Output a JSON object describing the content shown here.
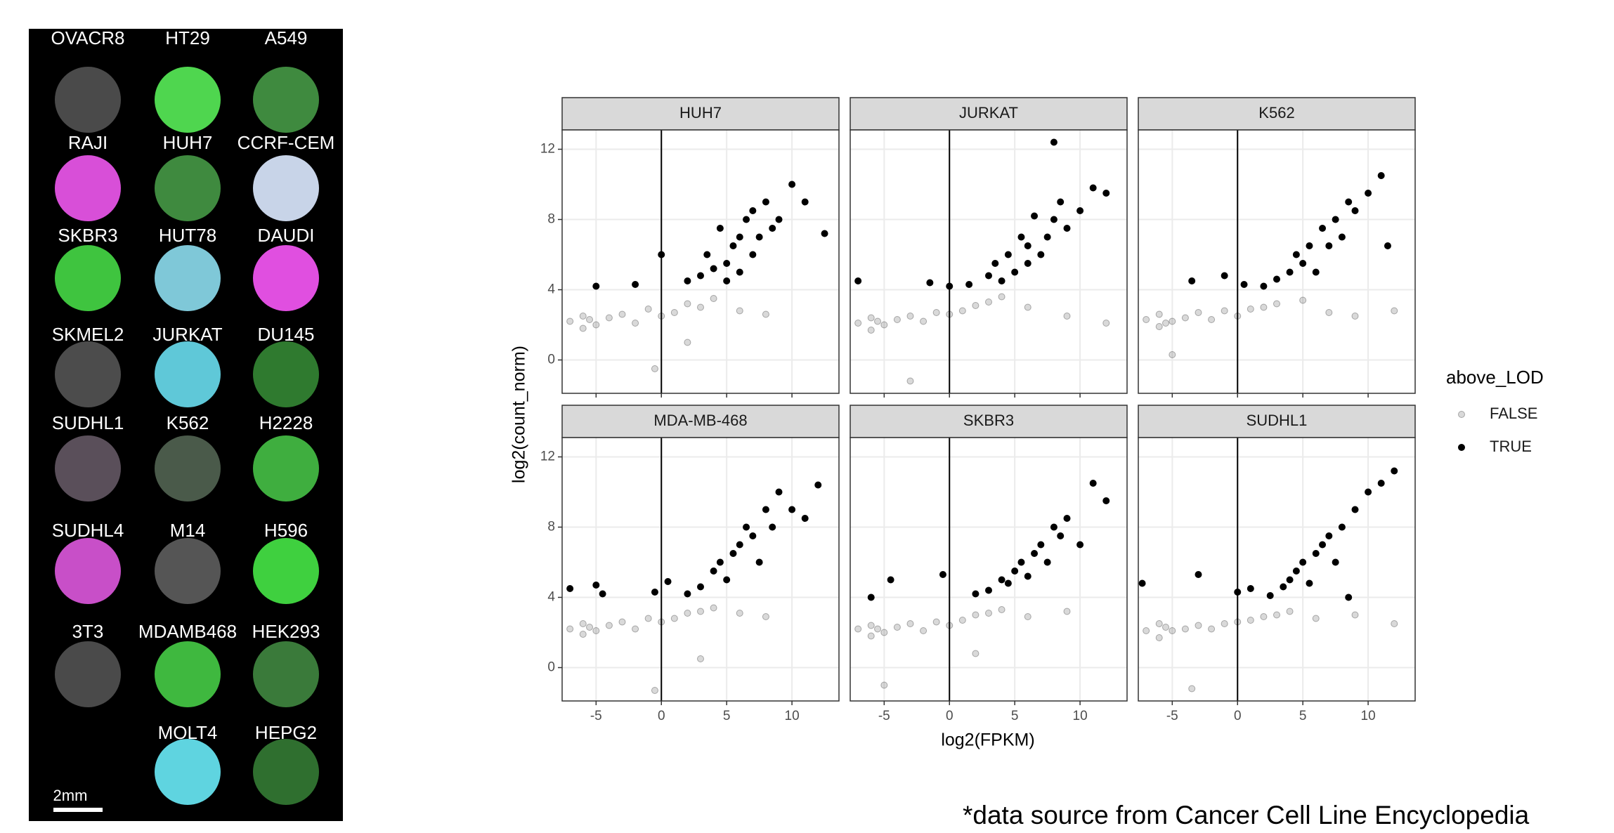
{
  "image_panel": {
    "wells": [
      [
        "OVACR8",
        "HT29",
        "A549"
      ],
      [
        "RAJI",
        "HUH7",
        "CCRF-CEM"
      ],
      [
        "SKBR3",
        "HUT78",
        "DAUDI"
      ],
      [
        "SKMEL2",
        "JURKAT",
        "DU145"
      ],
      [
        "SUDHL1",
        "K562",
        "H2228"
      ],
      [
        "SUDHL4",
        "M14",
        "H596"
      ],
      [
        "3T3",
        "MDAMB468",
        "HEK293"
      ],
      [
        null,
        "MOLT4",
        "HEPG2"
      ]
    ],
    "scale_bar": "2mm"
  },
  "chart_data": {
    "type": "scatter",
    "xlabel": "log2(FPKM)",
    "ylabel": "log2(count_norm)",
    "xlim": [
      -7.6,
      13.6
    ],
    "ylim": [
      -1.9,
      13.1
    ],
    "xticks": [
      -5,
      0,
      5,
      10
    ],
    "yticks": [
      0,
      4,
      8,
      12
    ],
    "vline": 0,
    "grid": true,
    "legend": {
      "title": "above_LOD",
      "position": "right"
    },
    "series": [
      {
        "name": "FALSE",
        "color": "#000000",
        "alpha": 0.15
      },
      {
        "name": "TRUE",
        "color": "#000000",
        "alpha": 1
      }
    ],
    "panels": [
      {
        "title": "HUH7",
        "points": [
          {
            "x": [
              -7,
              -6,
              -6,
              -5.5,
              -5,
              -4,
              -3,
              -2,
              -1,
              0,
              1,
              2,
              3,
              4,
              6,
              8,
              -0.5,
              2
            ],
            "y": [
              2.2,
              2.5,
              1.8,
              2.3,
              2,
              2.4,
              2.6,
              2.1,
              2.9,
              2.5,
              2.7,
              3.2,
              3,
              3.5,
              2.8,
              2.6,
              -0.5,
              1
            ]
          },
          {
            "x": [
              -5,
              -2,
              0,
              2,
              3,
              3.5,
              4,
              4.5,
              5,
              5,
              5.5,
              6,
              6,
              6.5,
              7,
              7,
              7.5,
              8,
              8.5,
              9,
              10,
              11,
              12.5
            ],
            "y": [
              4.2,
              4.3,
              6,
              4.5,
              4.8,
              6,
              5.2,
              7.5,
              5.5,
              4.5,
              6.5,
              7,
              5,
              8,
              6,
              8.5,
              7,
              9,
              7.5,
              8,
              10,
              9,
              7.2
            ]
          }
        ]
      },
      {
        "title": "JURKAT",
        "points": [
          {
            "x": [
              -7,
              -6,
              -6,
              -5.5,
              -5,
              -4,
              -3,
              -2,
              -1,
              0,
              1,
              2,
              3,
              4,
              6,
              9,
              -3,
              12
            ],
            "y": [
              2.1,
              2.4,
              1.7,
              2.2,
              2,
              2.3,
              2.5,
              2.2,
              2.7,
              2.6,
              2.8,
              3.1,
              3.3,
              3.6,
              3,
              2.5,
              -1.2,
              2.1
            ]
          },
          {
            "x": [
              -7,
              -1.5,
              0,
              1.5,
              3,
              3.5,
              4,
              4.5,
              5,
              5.5,
              6,
              6,
              6.5,
              7,
              7.5,
              8,
              8,
              8.5,
              9,
              10,
              11,
              12
            ],
            "y": [
              4.5,
              4.4,
              4.2,
              4.3,
              4.8,
              5.5,
              4.5,
              6,
              5,
              7,
              5.5,
              6.5,
              8.2,
              6,
              7,
              8,
              12.4,
              9,
              7.5,
              8.5,
              9.8,
              9.5
            ]
          }
        ]
      },
      {
        "title": "K562",
        "points": [
          {
            "x": [
              -7,
              -6,
              -6,
              -5.5,
              -5,
              -4,
              -3,
              -2,
              -1,
              0,
              1,
              2,
              3,
              5,
              7,
              9,
              -5,
              12
            ],
            "y": [
              2.3,
              2.6,
              1.9,
              2.1,
              2.2,
              2.4,
              2.7,
              2.3,
              2.8,
              2.5,
              2.9,
              3,
              3.2,
              3.4,
              2.7,
              2.5,
              0.3,
              2.8
            ]
          },
          {
            "x": [
              -3.5,
              -1,
              0.5,
              2,
              3,
              4,
              4.5,
              5,
              5.5,
              6,
              6.5,
              7,
              7.5,
              8,
              8.5,
              9,
              10,
              11,
              11.5
            ],
            "y": [
              4.5,
              4.8,
              4.3,
              4.2,
              4.6,
              5,
              6,
              5.5,
              6.5,
              5,
              7.5,
              6.5,
              8,
              7,
              9,
              8.5,
              9.5,
              10.5,
              6.5
            ]
          }
        ]
      },
      {
        "title": "MDA-MB-468",
        "points": [
          {
            "x": [
              -7,
              -6,
              -6,
              -5.5,
              -5,
              -4,
              -3,
              -2,
              -1,
              0,
              1,
              2,
              3,
              4,
              6,
              8,
              -0.5,
              3
            ],
            "y": [
              2.2,
              2.5,
              1.9,
              2.3,
              2.1,
              2.4,
              2.6,
              2.2,
              2.8,
              2.6,
              2.8,
              3.1,
              3.2,
              3.4,
              3.1,
              2.9,
              -1.3,
              0.5
            ]
          },
          {
            "x": [
              -7,
              -5,
              -4.5,
              -0.5,
              0.5,
              2,
              3,
              4,
              4.5,
              5,
              5.5,
              6,
              6.5,
              7,
              7.5,
              8,
              8.5,
              9,
              10,
              11,
              12
            ],
            "y": [
              4.5,
              4.7,
              4.2,
              4.3,
              4.9,
              4.2,
              4.6,
              5.5,
              6,
              5,
              6.5,
              7,
              8,
              7.5,
              6,
              9,
              8,
              10,
              9,
              8.5,
              10.4
            ]
          }
        ]
      },
      {
        "title": "SKBR3",
        "points": [
          {
            "x": [
              -7,
              -6,
              -6,
              -5.5,
              -5,
              -4,
              -3,
              -2,
              -1,
              0,
              1,
              2,
              3,
              4,
              6,
              9,
              -5,
              2
            ],
            "y": [
              2.2,
              2.4,
              1.8,
              2.2,
              2,
              2.3,
              2.5,
              2.1,
              2.6,
              2.4,
              2.7,
              3,
              3.1,
              3.3,
              2.9,
              3.2,
              -1,
              0.8
            ]
          },
          {
            "x": [
              -6,
              -4.5,
              -0.5,
              2,
              3,
              4,
              4.5,
              5,
              5.5,
              6,
              6.5,
              7,
              7.5,
              8,
              8.5,
              9,
              10,
              11,
              12
            ],
            "y": [
              4,
              5,
              5.3,
              4.2,
              4.4,
              5,
              4.8,
              5.5,
              6,
              5.2,
              6.5,
              7,
              6,
              8,
              7.5,
              8.5,
              7,
              10.5,
              9.5
            ]
          }
        ]
      },
      {
        "title": "SUDHL1",
        "points": [
          {
            "x": [
              -7,
              -6,
              -6,
              -5.5,
              -5,
              -4,
              -3,
              -2,
              -1,
              0,
              1,
              2,
              3,
              4,
              6,
              9,
              -3.5,
              12
            ],
            "y": [
              2.1,
              2.5,
              1.7,
              2.3,
              2.1,
              2.2,
              2.4,
              2.2,
              2.5,
              2.6,
              2.7,
              2.9,
              3,
              3.2,
              2.8,
              3,
              -1.2,
              2.5
            ]
          },
          {
            "x": [
              -7.3,
              -3,
              0,
              1,
              2.5,
              3.5,
              4,
              4.5,
              5,
              5.5,
              6,
              6.5,
              7,
              7.5,
              8,
              8.5,
              9,
              10,
              11,
              12
            ],
            "y": [
              4.8,
              5.3,
              4.3,
              4.5,
              4.1,
              4.6,
              5,
              5.5,
              6,
              4.8,
              6.5,
              7,
              7.5,
              6,
              8,
              4,
              9,
              10,
              10.5,
              11.2
            ]
          }
        ]
      }
    ]
  },
  "footnote": "*data source from Cancer Cell Line Encyclopedia"
}
